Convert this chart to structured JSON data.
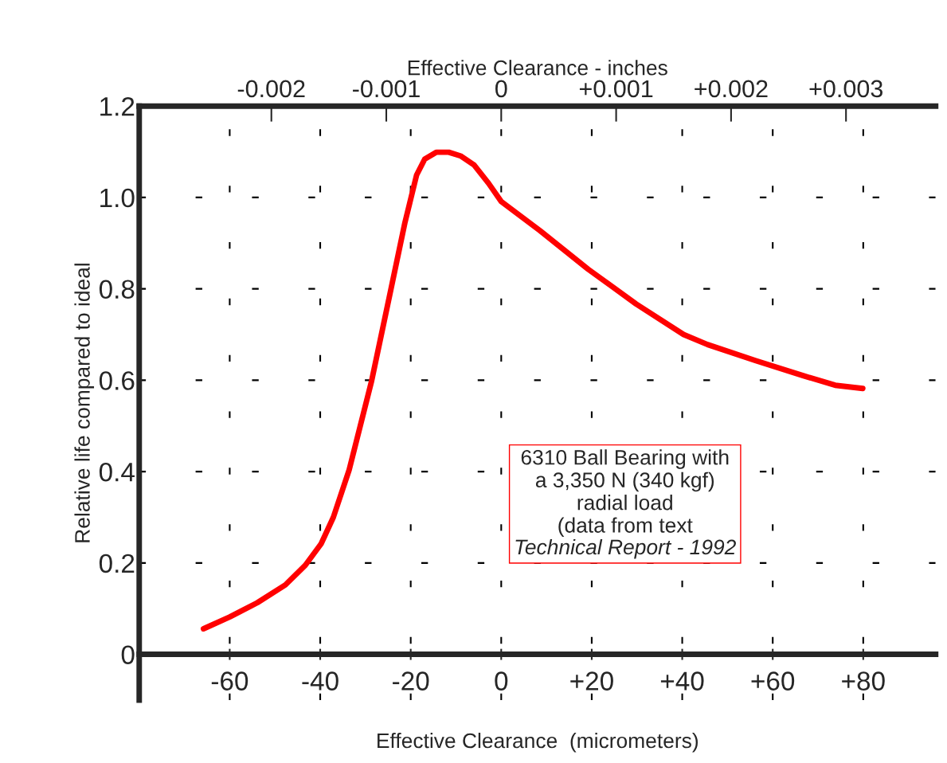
{
  "chart_data": {
    "type": "line",
    "xlabel": "Effective Clearance  (micrometers)",
    "ylabel": "Relative life compared to ideal",
    "x2label": "Effective Clearance - inches",
    "xlim": [
      -80,
      96
    ],
    "ylim": [
      -0.1,
      1.2
    ],
    "x2lim": [
      -0.00315,
      0.00378
    ],
    "xticks": [
      {
        "value": -60,
        "label": "-60"
      },
      {
        "value": -40,
        "label": "-40"
      },
      {
        "value": -20,
        "label": "-20"
      },
      {
        "value": 0,
        "label": "0"
      },
      {
        "value": 20,
        "label": "+20"
      },
      {
        "value": 40,
        "label": "+40"
      },
      {
        "value": 60,
        "label": "+60"
      },
      {
        "value": 80,
        "label": "+80"
      }
    ],
    "yticks": [
      {
        "value": 0,
        "label": "0"
      },
      {
        "value": 0.2,
        "label": "0.2"
      },
      {
        "value": 0.4,
        "label": "0.4"
      },
      {
        "value": 0.6,
        "label": "0.6"
      },
      {
        "value": 0.8,
        "label": "0.8"
      },
      {
        "value": 1.0,
        "label": "1.0"
      },
      {
        "value": 1.2,
        "label": "1.2"
      }
    ],
    "x2ticks": [
      {
        "value": -0.002,
        "label": "-0.002"
      },
      {
        "value": -0.001,
        "label": "-0.001"
      },
      {
        "value": 0,
        "label": "0"
      },
      {
        "value": 0.001,
        "label": "+0.001"
      },
      {
        "value": 0.002,
        "label": "+0.002"
      },
      {
        "value": 0.003,
        "label": "+0.003"
      }
    ],
    "grid": true,
    "marker": "none",
    "line_style": "solid",
    "series": [
      {
        "color": "#ff0000",
        "x": [
          -65.8,
          -60,
          -53.9,
          -47.7,
          -43.3,
          -39.8,
          -37.1,
          -33.6,
          -28.7,
          -24.8,
          -21.3,
          -18.7,
          -16.9,
          -14.3,
          -11.6,
          -9.0,
          -6.0,
          -2.8,
          0,
          8.6,
          19.2,
          29.8,
          40.3,
          45.6,
          56.2,
          66.7,
          73.8,
          79.9
        ],
        "values": [
          0.056,
          0.082,
          0.113,
          0.152,
          0.195,
          0.242,
          0.3,
          0.404,
          0.596,
          0.779,
          0.944,
          1.049,
          1.084,
          1.099,
          1.099,
          1.091,
          1.071,
          1.031,
          0.991,
          0.927,
          0.843,
          0.767,
          0.7,
          0.678,
          0.643,
          0.61,
          0.589,
          0.582
        ]
      }
    ],
    "annotations": [
      "6310 Ball Bearing with\na 3,350 N (340 kgf)\nradial load\n(data from text",
      "Technical Report - 1992"
    ]
  }
}
